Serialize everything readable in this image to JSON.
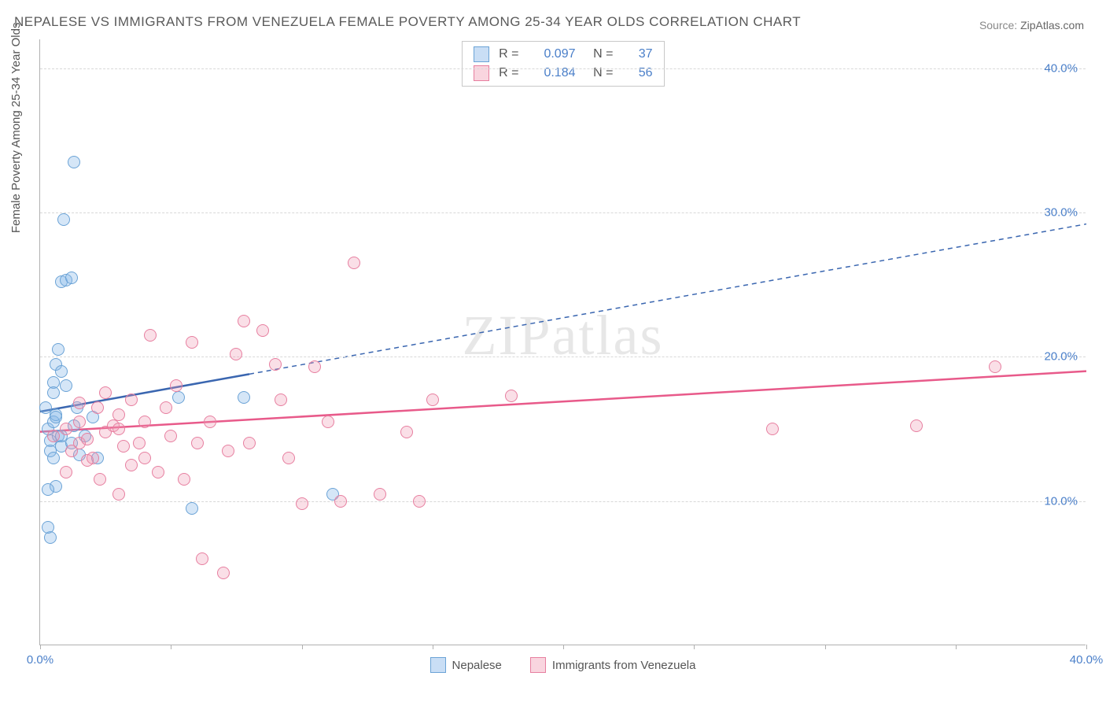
{
  "title": "NEPALESE VS IMMIGRANTS FROM VENEZUELA FEMALE POVERTY AMONG 25-34 YEAR OLDS CORRELATION CHART",
  "source_label": "Source:",
  "source_value": "ZipAtlas.com",
  "watermark": "ZIPatlas",
  "chart": {
    "type": "scatter",
    "y_axis_label": "Female Poverty Among 25-34 Year Olds",
    "xlim": [
      0,
      40
    ],
    "ylim": [
      0,
      42
    ],
    "x_ticks": [
      0,
      5,
      10,
      15,
      20,
      25,
      30,
      35,
      40
    ],
    "x_tick_labels": {
      "0": "0.0%",
      "40": "40.0%"
    },
    "y_gridlines": [
      10,
      20,
      30,
      40
    ],
    "y_tick_labels": {
      "10": "10.0%",
      "20": "20.0%",
      "30": "30.0%",
      "40": "40.0%"
    },
    "background_color": "#ffffff",
    "grid_color": "#d8d8d8",
    "axis_color": "#b0b0b0",
    "tick_label_color": "#4a7fc9",
    "marker_radius": 8,
    "series": [
      {
        "name": "Nepalese",
        "fill_color": "rgba(135,182,232,0.35)",
        "border_color": "#6ba3d6",
        "r_value": "0.097",
        "n_value": "37",
        "trend": {
          "x1": 0,
          "y1": 16.2,
          "x2_solid": 8,
          "y2_solid": 18.8,
          "x2": 40,
          "y2": 29.2,
          "color": "#3a66b0",
          "width": 2.5
        },
        "points": [
          [
            0.2,
            16.5
          ],
          [
            0.3,
            15.0
          ],
          [
            0.4,
            14.2
          ],
          [
            0.5,
            18.2
          ],
          [
            0.6,
            19.5
          ],
          [
            0.7,
            20.5
          ],
          [
            0.8,
            19.0
          ],
          [
            0.8,
            25.2
          ],
          [
            0.9,
            29.5
          ],
          [
            1.0,
            25.3
          ],
          [
            1.2,
            25.5
          ],
          [
            1.3,
            33.5
          ],
          [
            0.4,
            13.5
          ],
          [
            0.5,
            13.0
          ],
          [
            0.6,
            11.0
          ],
          [
            0.3,
            10.8
          ],
          [
            0.4,
            7.5
          ],
          [
            0.5,
            15.5
          ],
          [
            0.6,
            16.0
          ],
          [
            0.7,
            14.5
          ],
          [
            0.8,
            13.8
          ],
          [
            0.8,
            14.5
          ],
          [
            1.0,
            18.0
          ],
          [
            1.2,
            14.0
          ],
          [
            1.3,
            15.2
          ],
          [
            1.4,
            16.5
          ],
          [
            1.5,
            13.2
          ],
          [
            1.7,
            14.5
          ],
          [
            2.0,
            15.8
          ],
          [
            2.2,
            13.0
          ],
          [
            5.8,
            9.5
          ],
          [
            5.3,
            17.2
          ],
          [
            7.8,
            17.2
          ],
          [
            11.2,
            10.5
          ],
          [
            0.3,
            8.2
          ],
          [
            0.5,
            17.5
          ],
          [
            0.6,
            15.8
          ]
        ]
      },
      {
        "name": "Immigrants from Venezuela",
        "fill_color": "rgba(240,150,175,0.30)",
        "border_color": "#e77fa0",
        "r_value": "0.184",
        "n_value": "56",
        "trend": {
          "x1": 0,
          "y1": 14.8,
          "x2_solid": 40,
          "y2_solid": 19.0,
          "x2": 40,
          "y2": 19.0,
          "color": "#e85a8a",
          "width": 2.5
        },
        "points": [
          [
            0.5,
            14.5
          ],
          [
            1.0,
            15.0
          ],
          [
            1.2,
            13.5
          ],
          [
            1.5,
            14.0
          ],
          [
            1.5,
            15.5
          ],
          [
            1.8,
            14.3
          ],
          [
            2.0,
            13.0
          ],
          [
            2.2,
            16.5
          ],
          [
            2.5,
            14.8
          ],
          [
            2.5,
            17.5
          ],
          [
            2.8,
            15.2
          ],
          [
            3.0,
            10.5
          ],
          [
            3.0,
            16.0
          ],
          [
            3.2,
            13.8
          ],
          [
            3.5,
            12.5
          ],
          [
            3.5,
            17.0
          ],
          [
            3.8,
            14.0
          ],
          [
            4.0,
            15.5
          ],
          [
            4.0,
            13.0
          ],
          [
            4.2,
            21.5
          ],
          [
            4.5,
            12.0
          ],
          [
            4.8,
            16.5
          ],
          [
            5.0,
            14.5
          ],
          [
            5.2,
            18.0
          ],
          [
            5.5,
            11.5
          ],
          [
            5.8,
            21.0
          ],
          [
            6.0,
            14.0
          ],
          [
            6.2,
            6.0
          ],
          [
            6.5,
            15.5
          ],
          [
            7.0,
            5.0
          ],
          [
            7.2,
            13.5
          ],
          [
            7.5,
            20.2
          ],
          [
            7.8,
            22.5
          ],
          [
            8.0,
            14.0
          ],
          [
            8.5,
            21.8
          ],
          [
            9.0,
            19.5
          ],
          [
            9.2,
            17.0
          ],
          [
            9.5,
            13.0
          ],
          [
            10.0,
            9.8
          ],
          [
            10.5,
            19.3
          ],
          [
            11.0,
            15.5
          ],
          [
            11.5,
            10.0
          ],
          [
            12.0,
            26.5
          ],
          [
            13.0,
            10.5
          ],
          [
            14.0,
            14.8
          ],
          [
            14.5,
            10.0
          ],
          [
            15.0,
            17.0
          ],
          [
            18.0,
            17.3
          ],
          [
            28.0,
            15.0
          ],
          [
            33.5,
            15.2
          ],
          [
            36.5,
            19.3
          ],
          [
            1.0,
            12.0
          ],
          [
            1.8,
            12.8
          ],
          [
            2.3,
            11.5
          ],
          [
            3.0,
            15.0
          ],
          [
            1.5,
            16.8
          ]
        ]
      }
    ]
  },
  "stats_box_labels": {
    "r": "R =",
    "n": "N ="
  },
  "bottom_legend": [
    "Nepalese",
    "Immigrants from Venezuela"
  ]
}
